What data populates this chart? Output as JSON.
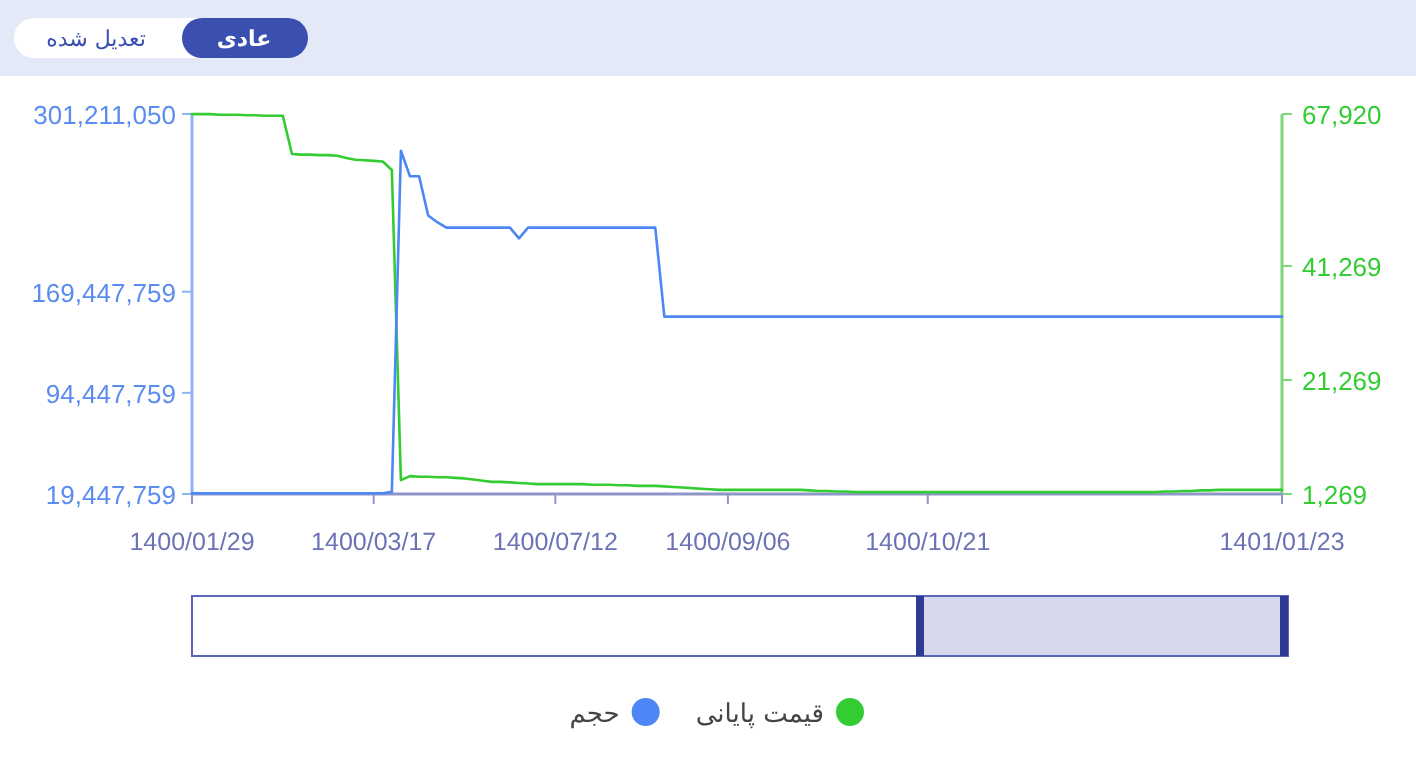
{
  "chart_data": {
    "type": "line",
    "annotations": [
      "عادی",
      "تعدیل شده"
    ],
    "categories": [
      "1400/01/29",
      null,
      null,
      null,
      null,
      null,
      null,
      null,
      null,
      null,
      null,
      null,
      null,
      null,
      null,
      null,
      null,
      null,
      null,
      null,
      "1400/03/17",
      null,
      null,
      null,
      null,
      null,
      null,
      null,
      null,
      null,
      null,
      null,
      null,
      null,
      null,
      null,
      null,
      null,
      null,
      null,
      "1400/07/12",
      null,
      null,
      null,
      null,
      null,
      null,
      null,
      null,
      null,
      null,
      null,
      null,
      null,
      null,
      null,
      null,
      null,
      null,
      "1400/09/06",
      null,
      null,
      null,
      null,
      null,
      null,
      null,
      null,
      null,
      null,
      null,
      null,
      null,
      null,
      null,
      null,
      null,
      null,
      null,
      null,
      null,
      "1400/10/21",
      null,
      null,
      null,
      null,
      null,
      null,
      null,
      null,
      null,
      null,
      null,
      null,
      null,
      null,
      null,
      null,
      null,
      null,
      null,
      null,
      null,
      null,
      null,
      null,
      null,
      null,
      null,
      null,
      null,
      null,
      null,
      null,
      null,
      null,
      null,
      null,
      null,
      null,
      "1401/01/23"
    ],
    "ylim": [
      19447759,
      301211050
    ],
    "yticks": [
      {
        "value": 19447759,
        "label": "19,447,759"
      },
      {
        "value": 94447759,
        "label": "94,447,759"
      },
      {
        "value": 169447759,
        "label": "169,447,759"
      },
      {
        "value": 301211050,
        "label": "301,211,050"
      }
    ],
    "y2lim": [
      1269,
      67920
    ],
    "y2ticks": [
      {
        "value": 1269,
        "label": "1,269"
      },
      {
        "value": 21269,
        "label": "21,269"
      },
      {
        "value": 41269,
        "label": "41,269"
      },
      {
        "value": 67920,
        "label": "67,920"
      }
    ],
    "legend": "bottom",
    "line_style": "solid",
    "series": [
      {
        "name": "قیمت پایانی",
        "color": "#33cc33",
        "axis": "y2",
        "values": [
          67900,
          67900,
          67900,
          67800,
          67800,
          67800,
          67700,
          67700,
          67600,
          67600,
          67600,
          60900,
          60800,
          60800,
          60700,
          60700,
          60600,
          60200,
          59900,
          59800,
          59700,
          59600,
          58100,
          3700,
          4400,
          4300,
          4300,
          4200,
          4200,
          4100,
          4000,
          3800,
          3600,
          3400,
          3400,
          3300,
          3200,
          3100,
          3000,
          3000,
          3000,
          3000,
          3000,
          3000,
          2900,
          2900,
          2900,
          2800,
          2800,
          2700,
          2700,
          2700,
          2600,
          2500,
          2400,
          2300,
          2200,
          2100,
          2000,
          2000,
          2000,
          2000,
          2000,
          2000,
          2000,
          2000,
          2000,
          2000,
          1900,
          1800,
          1800,
          1700,
          1700,
          1600,
          1600,
          1600,
          1600,
          1600,
          1600,
          1600,
          1600,
          1600,
          1600,
          1600,
          1600,
          1600,
          1600,
          1600,
          1600,
          1600,
          1600,
          1600,
          1600,
          1600,
          1600,
          1600,
          1600,
          1600,
          1600,
          1600,
          1600,
          1600,
          1600,
          1600,
          1600,
          1600,
          1600,
          1700,
          1700,
          1800,
          1800,
          1900,
          1900,
          2000,
          2000,
          2000,
          2000,
          2000,
          2000,
          2000,
          2000
        ]
      },
      {
        "name": "حجم",
        "color": "#4d86f5",
        "values": [
          20000000,
          20000000,
          20000000,
          20000000,
          20000000,
          20000000,
          20000000,
          20000000,
          20000000,
          20000000,
          20000000,
          20000000,
          20000000,
          20000000,
          20000000,
          20000000,
          20000000,
          20000000,
          20000000,
          20000000,
          20000000,
          20000000,
          21000000,
          274000000,
          255000000,
          255000000,
          226000000,
          221000000,
          217000000,
          217000000,
          217000000,
          217000000,
          217000000,
          217000000,
          217000000,
          217000000,
          209000000,
          217000000,
          217000000,
          217000000,
          217000000,
          217000000,
          217000000,
          217000000,
          217000000,
          217000000,
          217000000,
          217000000,
          217000000,
          217000000,
          217000000,
          217000000,
          151000000,
          151000000,
          151000000,
          151000000,
          151000000,
          151000000,
          151000000,
          151000000,
          151000000,
          151000000,
          151000000,
          151000000,
          151000000,
          151000000,
          151000000,
          151000000,
          151000000,
          151000000,
          151000000,
          151000000,
          151000000,
          151000000,
          151000000,
          151000000,
          151000000,
          151000000,
          151000000,
          151000000,
          151000000,
          151000000,
          151000000,
          151000000,
          151000000,
          151000000,
          151000000,
          151000000,
          151000000,
          151000000,
          151000000,
          151000000,
          151000000,
          151000000,
          151000000,
          151000000,
          151000000,
          151000000,
          151000000,
          151000000,
          151000000,
          151000000,
          151000000,
          151000000,
          151000000,
          151000000,
          151000000,
          151000000,
          151000000,
          151000000,
          151000000,
          151000000,
          151000000,
          151000000,
          151000000,
          151000000,
          151000000,
          151000000,
          151000000,
          151000000,
          151000000
        ]
      }
    ]
  }
}
